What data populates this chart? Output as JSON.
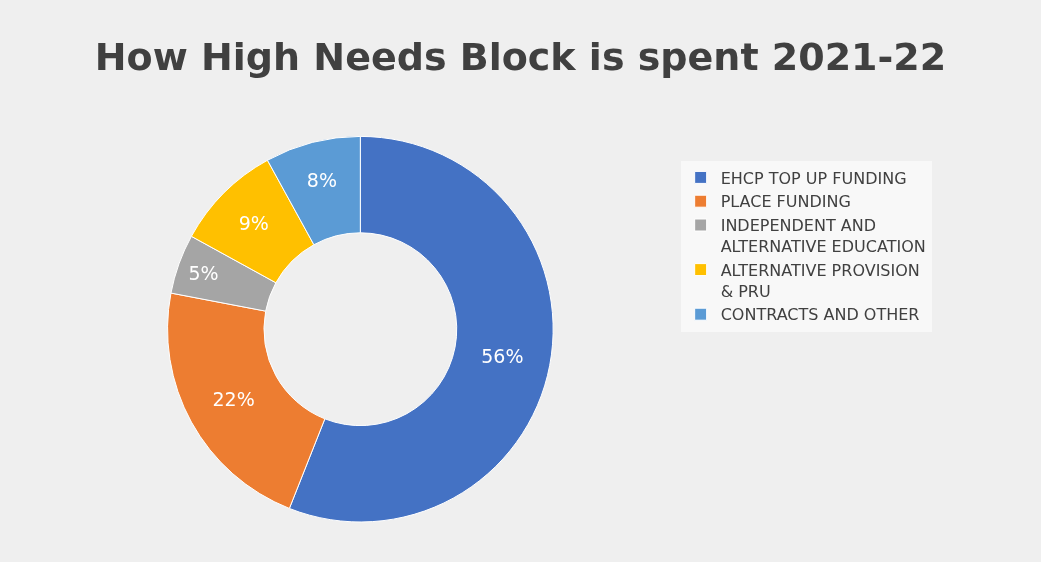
{
  "chart_data": {
    "type": "donut",
    "title": "How High Needs Block is spent 2021-22",
    "categories": [
      "EHCP TOP UP FUNDING",
      "PLACE FUNDING",
      "INDEPENDENT AND ALTERNATIVE EDUCATION",
      "ALTERNATIVE PROVISION & PRU",
      "CONTRACTS AND OTHER"
    ],
    "values": [
      56,
      22,
      5,
      9,
      8
    ],
    "value_labels": [
      "56%",
      "22%",
      "5%",
      "9%",
      "8%"
    ],
    "colors": [
      "#4472c4",
      "#ed7d31",
      "#a5a5a5",
      "#ffc000",
      "#5b9bd5"
    ],
    "legend": "right"
  }
}
